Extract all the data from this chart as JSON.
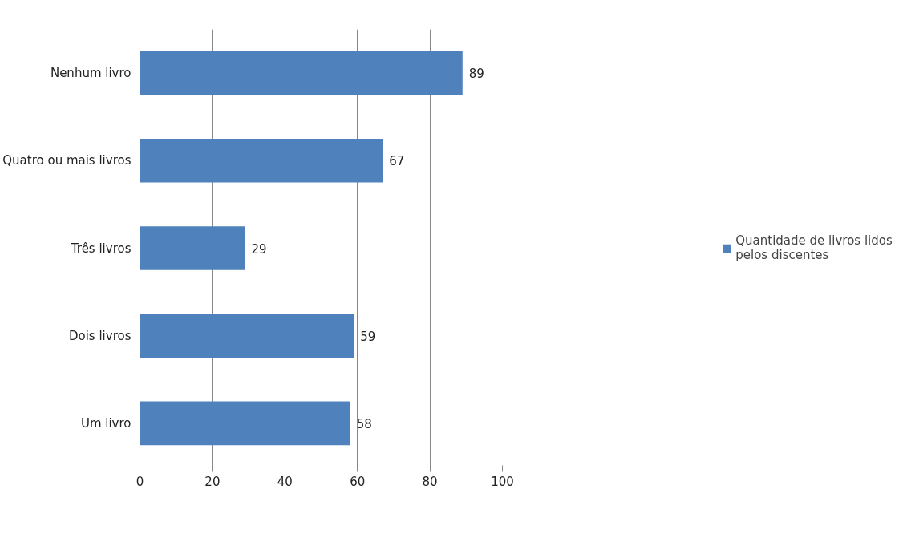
{
  "chart_data": {
    "type": "bar",
    "orientation": "horizontal",
    "categories": [
      "Nenhum livro",
      "Quatro ou mais livros",
      "Três livros",
      "Dois livros",
      "Um livro"
    ],
    "series": [
      {
        "name": "Quantidade de livros lidos pelos discentes",
        "color": "#4f81bd",
        "values": [
          89,
          67,
          29,
          59,
          58
        ]
      }
    ],
    "xlim": [
      0,
      100
    ],
    "xticks": [
      0,
      20,
      40,
      60,
      80,
      100
    ],
    "grid": "x",
    "legend": "right",
    "data_labels": true
  }
}
